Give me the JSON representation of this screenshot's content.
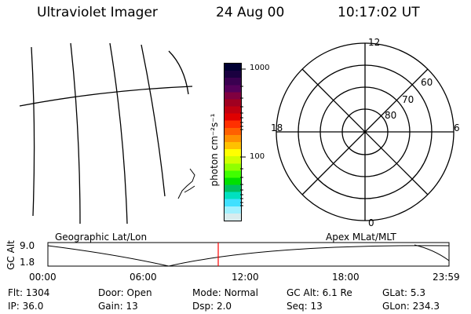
{
  "header": {
    "instrument": "Ultraviolet Imager",
    "date": "24 Aug 00",
    "time": "10:17:02 UT"
  },
  "colorbar": {
    "unit": "photon cm⁻²s⁻¹",
    "ticks": [
      "1000",
      "100"
    ],
    "colors": [
      "#000033",
      "#1a0040",
      "#3a0050",
      "#55005a",
      "#800040",
      "#a00020",
      "#c00010",
      "#e00000",
      "#ff3000",
      "#ff6000",
      "#ff9000",
      "#ffc000",
      "#ffff00",
      "#d0ff00",
      "#90ff00",
      "#40ff00",
      "#00e000",
      "#00c060",
      "#00e0c0",
      "#40e0ff",
      "#a0f0ff",
      "#d8ecee"
    ]
  },
  "polar_plot": {
    "clock_labels": [
      "12",
      "18",
      "6",
      "0"
    ],
    "latitude_labels": [
      "60",
      "70",
      "80"
    ]
  },
  "panel_labels": {
    "left": "Geographic Lat/Lon",
    "right": "Apex MLat/MLT"
  },
  "altitude_plot": {
    "ylabel": "GC Alt",
    "y_ticks": [
      "9.0",
      "1.8"
    ],
    "x_ticks": [
      "00:00",
      "06:00",
      "12:00",
      "18:00",
      "23:59"
    ]
  },
  "status": {
    "row1": [
      {
        "label": "Flt:",
        "value": "1304"
      },
      {
        "label": "Door:",
        "value": "Open"
      },
      {
        "label": "Mode:",
        "value": "Normal"
      },
      {
        "label": "GC Alt:",
        "value": "6.1 Re"
      },
      {
        "label": "GLat:",
        "value": "5.3"
      }
    ],
    "row2": [
      {
        "label": "IP:",
        "value": "36.0"
      },
      {
        "label": "Gain:",
        "value": "13"
      },
      {
        "label": "Dsp:",
        "value": "2.0"
      },
      {
        "label": "Seq:",
        "value": "13"
      },
      {
        "label": "GLon:",
        "value": "234.3"
      }
    ]
  },
  "colors": {
    "foreground": "#000000",
    "background": "#ffffff",
    "time_marker": "#ff0000"
  }
}
